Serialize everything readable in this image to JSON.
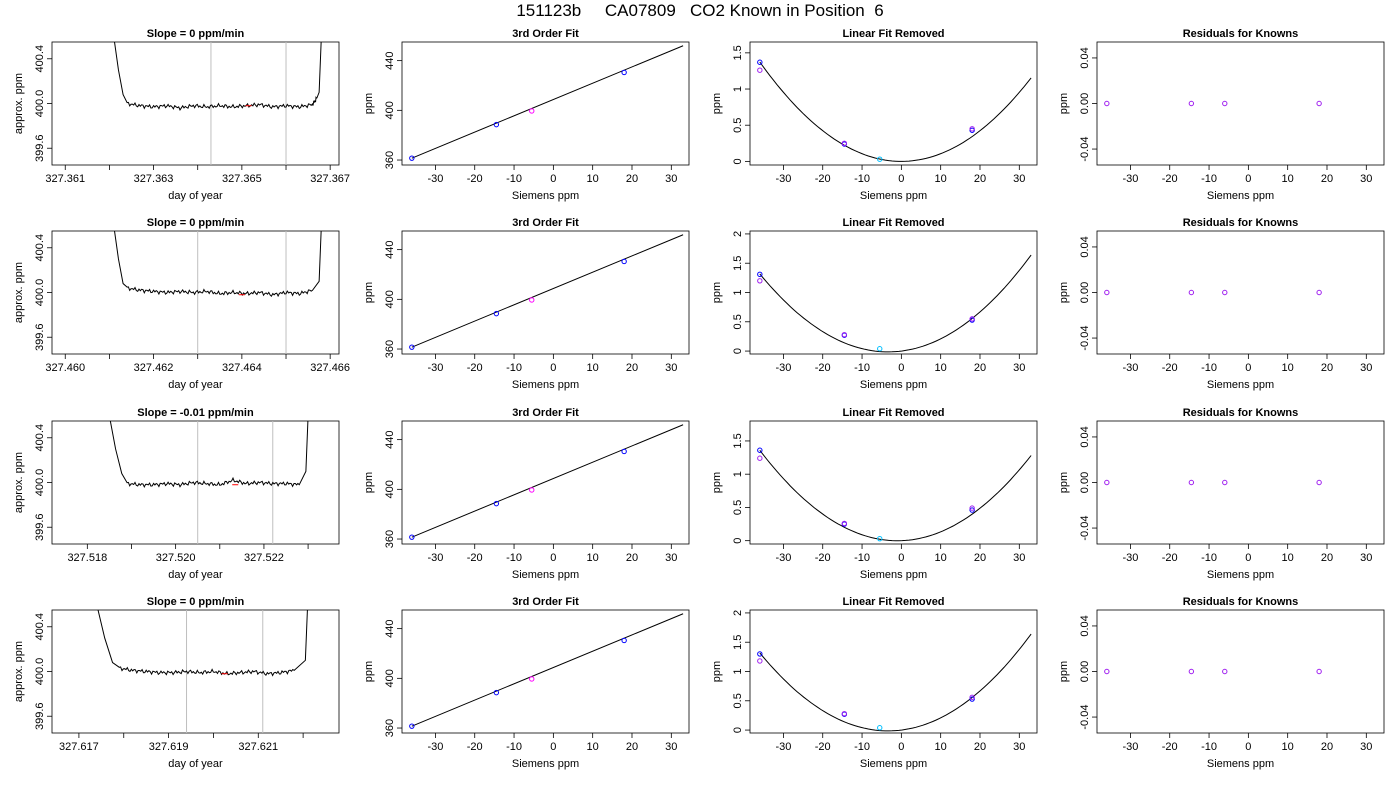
{
  "title": "151123b     CA07809   CO2 Known in Position  6",
  "colors": {
    "line": "#000000",
    "grid": "#bebebe",
    "known_fit": "#0000ff",
    "known_meas": "#a020f0",
    "sample": "#00bfff",
    "reference": "#ff00ff",
    "marker": "#ff0000"
  },
  "chart_data": [
    {
      "row": 1,
      "type": "line",
      "title": "Slope =  0  ppm/min",
      "xlabel": "day of year",
      "ylabel": "approx. ppm",
      "xlim": [
        327.3607,
        327.3672
      ],
      "ylim": [
        399.45,
        400.55
      ],
      "xticks": [
        327.361,
        327.362,
        327.363,
        327.364,
        327.365,
        327.366,
        327.367
      ],
      "xticklabels": [
        "327.361",
        "",
        "327.363",
        "",
        "327.365",
        "",
        "327.367"
      ],
      "yticks": [
        399.6,
        400.0,
        400.4
      ],
      "yticklabels": [
        "399.6",
        "400.0",
        "400.4"
      ],
      "vlines": [
        327.3643,
        327.366
      ],
      "x": [
        327.3624,
        327.3627,
        327.363,
        327.3633,
        327.3636,
        327.3639,
        327.3642,
        327.3645,
        327.3648,
        327.3651,
        327.3654,
        327.3657,
        327.366,
        327.3663,
        327.3666,
        327.3667
      ],
      "values": [
        400.0,
        399.98,
        399.97,
        399.98,
        399.96,
        399.98,
        399.97,
        399.98,
        399.97,
        399.98,
        399.99,
        399.97,
        399.98,
        399.97,
        399.99,
        400.05
      ],
      "edge_rise": [
        327.3621,
        327.3668
      ]
    },
    {
      "row": 2,
      "type": "line",
      "title": "Slope =  0  ppm/min",
      "xlabel": "day of year",
      "ylabel": "approx. ppm",
      "xlim": [
        327.4597,
        327.4662
      ],
      "ylim": [
        399.45,
        400.55
      ],
      "xticks": [
        327.46,
        327.461,
        327.462,
        327.463,
        327.464,
        327.465,
        327.466
      ],
      "xticklabels": [
        "327.460",
        "",
        "327.462",
        "",
        "327.464",
        "",
        "327.466"
      ],
      "yticks": [
        399.6,
        400.0,
        400.4
      ],
      "yticklabels": [
        "399.6",
        "400.0",
        "400.4"
      ],
      "vlines": [
        327.463,
        327.465
      ],
      "x": [
        327.4614,
        327.4617,
        327.462,
        327.4623,
        327.4626,
        327.4629,
        327.4632,
        327.4635,
        327.4638,
        327.4641,
        327.4644,
        327.4647,
        327.465,
        327.4653,
        327.4656
      ],
      "values": [
        400.04,
        400.02,
        400.01,
        400.0,
        400.01,
        400.0,
        400.01,
        399.99,
        400.0,
        399.99,
        400.0,
        399.98,
        400.0,
        399.99,
        400.02
      ],
      "edge_rise": [
        327.4611,
        327.4658
      ]
    },
    {
      "row": 3,
      "type": "line",
      "title": "Slope =  -0.01  ppm/min",
      "xlabel": "day of year",
      "ylabel": "approx. ppm",
      "xlim": [
        327.5172,
        327.5237
      ],
      "ylim": [
        399.45,
        400.55
      ],
      "xticks": [
        327.518,
        327.519,
        327.52,
        327.521,
        327.522,
        327.523
      ],
      "xticklabels": [
        "327.518",
        "",
        "327.520",
        "",
        "327.522",
        ""
      ],
      "yticks": [
        399.6,
        400.0,
        400.4
      ],
      "yticklabels": [
        "399.6",
        "400.0",
        "400.4"
      ],
      "vlines": [
        327.5205,
        327.5222
      ],
      "x": [
        327.5189,
        327.5192,
        327.5195,
        327.5198,
        327.5201,
        327.5204,
        327.5207,
        327.521,
        327.5213,
        327.5216,
        327.5219,
        327.5222,
        327.5225,
        327.5228
      ],
      "values": [
        399.99,
        399.98,
        399.98,
        399.99,
        399.98,
        400.0,
        399.99,
        399.98,
        400.02,
        399.99,
        400.0,
        399.99,
        399.99,
        399.98
      ],
      "edge_rise": [
        327.5185,
        327.523
      ]
    },
    {
      "row": 4,
      "type": "line",
      "title": "Slope =  0  ppm/min",
      "xlabel": "day of year",
      "ylabel": "approx. ppm",
      "xlim": [
        327.6164,
        327.6228
      ],
      "ylim": [
        399.45,
        400.55
      ],
      "xticks": [
        327.617,
        327.618,
        327.619,
        327.62,
        327.621,
        327.622
      ],
      "xticklabels": [
        "327.617",
        "",
        "327.619",
        "",
        "327.621",
        ""
      ],
      "yticks": [
        399.6,
        400.0,
        400.4
      ],
      "yticklabels": [
        "399.6",
        "400.0",
        "400.4"
      ],
      "vlines": [
        327.6194,
        327.6211
      ],
      "x": [
        327.6179,
        327.6182,
        327.6185,
        327.6188,
        327.6191,
        327.6194,
        327.6197,
        327.62,
        327.6203,
        327.6206,
        327.6209,
        327.6212,
        327.6215,
        327.6218
      ],
      "values": [
        400.03,
        400.01,
        400.0,
        399.99,
        399.99,
        400.0,
        399.99,
        400.0,
        399.98,
        399.99,
        400.0,
        399.98,
        399.99,
        400.01
      ],
      "edge_rise": [
        327.6174,
        327.6221
      ]
    },
    {
      "row": 1,
      "type": "scatter",
      "title": "3rd Order Fit",
      "xlabel": "Siemens ppm",
      "ylabel": "ppm",
      "xlim": [
        -38.5,
        34.5
      ],
      "ylim": [
        356,
        455
      ],
      "xticks": [
        -30,
        -20,
        -10,
        0,
        10,
        20,
        30
      ],
      "yticks": [
        360,
        400,
        440
      ],
      "fit_line": {
        "x": [
          -36,
          33
        ],
        "y": [
          361.5,
          452
        ]
      },
      "points": [
        {
          "x": -36,
          "y": 361.5,
          "group": "known"
        },
        {
          "x": -14.5,
          "y": 388.5,
          "group": "known"
        },
        {
          "x": -5.5,
          "y": 399.5,
          "group": "reference"
        },
        {
          "x": 18,
          "y": 430.5,
          "group": "known"
        }
      ]
    },
    {
      "row": 2,
      "type": "scatter",
      "title": "3rd Order Fit",
      "xlabel": "Siemens ppm",
      "ylabel": "ppm",
      "xlim": [
        -38.5,
        34.5
      ],
      "ylim": [
        356,
        455
      ],
      "xticks": [
        -30,
        -20,
        -10,
        0,
        10,
        20,
        30
      ],
      "yticks": [
        360,
        400,
        440
      ],
      "fit_line": {
        "x": [
          -36,
          33
        ],
        "y": [
          361.5,
          452
        ]
      },
      "points": [
        {
          "x": -36,
          "y": 361.5,
          "group": "known"
        },
        {
          "x": -14.5,
          "y": 388.5,
          "group": "known"
        },
        {
          "x": -5.5,
          "y": 399.5,
          "group": "reference"
        },
        {
          "x": 18,
          "y": 430.5,
          "group": "known"
        }
      ]
    },
    {
      "row": 3,
      "type": "scatter",
      "title": "3rd Order Fit",
      "xlabel": "Siemens ppm",
      "ylabel": "ppm",
      "xlim": [
        -38.5,
        34.5
      ],
      "ylim": [
        356,
        455
      ],
      "xticks": [
        -30,
        -20,
        -10,
        0,
        10,
        20,
        30
      ],
      "yticks": [
        360,
        400,
        440
      ],
      "fit_line": {
        "x": [
          -36,
          33
        ],
        "y": [
          361.5,
          452
        ]
      },
      "points": [
        {
          "x": -36,
          "y": 361.5,
          "group": "known"
        },
        {
          "x": -14.5,
          "y": 388.5,
          "group": "known"
        },
        {
          "x": -5.5,
          "y": 399.5,
          "group": "reference"
        },
        {
          "x": 18,
          "y": 430.5,
          "group": "known"
        }
      ]
    },
    {
      "row": 4,
      "type": "scatter",
      "title": "3rd Order Fit",
      "xlabel": "Siemens ppm",
      "ylabel": "ppm",
      "xlim": [
        -38.5,
        34.5
      ],
      "ylim": [
        356,
        455
      ],
      "xticks": [
        -30,
        -20,
        -10,
        0,
        10,
        20,
        30
      ],
      "yticks": [
        360,
        400,
        440
      ],
      "fit_line": {
        "x": [
          -36,
          33
        ],
        "y": [
          361.5,
          452
        ]
      },
      "points": [
        {
          "x": -36,
          "y": 361.5,
          "group": "known"
        },
        {
          "x": -14.5,
          "y": 388.5,
          "group": "known"
        },
        {
          "x": -5.5,
          "y": 399.5,
          "group": "reference"
        },
        {
          "x": 18,
          "y": 430.5,
          "group": "known"
        }
      ]
    },
    {
      "row": 1,
      "type": "scatter",
      "title": "Linear Fit Removed",
      "xlabel": "Siemens ppm",
      "ylabel": "ppm",
      "xlim": [
        -38.5,
        34.5
      ],
      "ylim": [
        -0.05,
        1.65
      ],
      "xticks": [
        -30,
        -20,
        -10,
        0,
        10,
        20,
        30
      ],
      "yticks": [
        0.0,
        0.5,
        1.0,
        1.5
      ],
      "curve": {
        "a": 0.00106,
        "b": 0,
        "c": 0,
        "xrange": [
          -36,
          33
        ]
      },
      "points": [
        {
          "x": -36,
          "y": 1.37,
          "group": "fit"
        },
        {
          "x": -36,
          "y": 1.26,
          "group": "measured"
        },
        {
          "x": -14.5,
          "y": 0.24,
          "group": "fit"
        },
        {
          "x": -14.5,
          "y": 0.25,
          "group": "measured"
        },
        {
          "x": -5.5,
          "y": 0.03,
          "group": "sample"
        },
        {
          "x": 18,
          "y": 0.43,
          "group": "fit"
        },
        {
          "x": 18,
          "y": 0.45,
          "group": "measured"
        }
      ]
    },
    {
      "row": 2,
      "type": "scatter",
      "title": "Linear Fit Removed",
      "xlabel": "Siemens ppm",
      "ylabel": "ppm",
      "xlim": [
        -38.5,
        34.5
      ],
      "ylim": [
        -0.05,
        2.05
      ],
      "xticks": [
        -30,
        -20,
        -10,
        0,
        10,
        20,
        30
      ],
      "yticks": [
        0.0,
        0.5,
        1.0,
        1.5,
        2.0
      ],
      "curve": {
        "a": 0.00125,
        "b": 0.0084,
        "c": 0,
        "xrange": [
          -36,
          33
        ]
      },
      "points": [
        {
          "x": -36,
          "y": 1.31,
          "group": "fit"
        },
        {
          "x": -36,
          "y": 1.2,
          "group": "measured"
        },
        {
          "x": -14.5,
          "y": 0.27,
          "group": "fit"
        },
        {
          "x": -14.5,
          "y": 0.28,
          "group": "measured"
        },
        {
          "x": -5.5,
          "y": 0.04,
          "group": "sample"
        },
        {
          "x": 18,
          "y": 0.53,
          "group": "fit"
        },
        {
          "x": 18,
          "y": 0.55,
          "group": "measured"
        }
      ]
    },
    {
      "row": 3,
      "type": "scatter",
      "title": "Linear Fit Removed",
      "xlabel": "Siemens ppm",
      "ylabel": "ppm",
      "xlim": [
        -38.5,
        34.5
      ],
      "ylim": [
        -0.05,
        1.8
      ],
      "xticks": [
        -30,
        -20,
        -10,
        0,
        10,
        20,
        30
      ],
      "yticks": [
        0.0,
        0.5,
        1.0,
        1.5
      ],
      "curve": {
        "a": 0.00111,
        "b": 0.0022,
        "c": 0,
        "xrange": [
          -36,
          33
        ]
      },
      "points": [
        {
          "x": -36,
          "y": 1.36,
          "group": "fit"
        },
        {
          "x": -36,
          "y": 1.24,
          "group": "measured"
        },
        {
          "x": -14.5,
          "y": 0.25,
          "group": "fit"
        },
        {
          "x": -14.5,
          "y": 0.26,
          "group": "measured"
        },
        {
          "x": -5.5,
          "y": 0.03,
          "group": "sample"
        },
        {
          "x": 18,
          "y": 0.46,
          "group": "fit"
        },
        {
          "x": 18,
          "y": 0.49,
          "group": "measured"
        }
      ]
    },
    {
      "row": 4,
      "type": "scatter",
      "title": "Linear Fit Removed",
      "xlabel": "Siemens ppm",
      "ylabel": "ppm",
      "xlim": [
        -38.5,
        34.5
      ],
      "ylim": [
        -0.05,
        2.05
      ],
      "xticks": [
        -30,
        -20,
        -10,
        0,
        10,
        20,
        30
      ],
      "yticks": [
        0.0,
        0.5,
        1.0,
        1.5,
        2.0
      ],
      "curve": {
        "a": 0.00125,
        "b": 0.0084,
        "c": 0,
        "xrange": [
          -36,
          33
        ]
      },
      "points": [
        {
          "x": -36,
          "y": 1.3,
          "group": "fit"
        },
        {
          "x": -36,
          "y": 1.18,
          "group": "measured"
        },
        {
          "x": -14.5,
          "y": 0.27,
          "group": "fit"
        },
        {
          "x": -14.5,
          "y": 0.28,
          "group": "measured"
        },
        {
          "x": -5.5,
          "y": 0.04,
          "group": "sample"
        },
        {
          "x": 18,
          "y": 0.53,
          "group": "fit"
        },
        {
          "x": 18,
          "y": 0.56,
          "group": "measured"
        }
      ]
    },
    {
      "row": 1,
      "type": "scatter",
      "title": "Residuals for Knowns",
      "xlabel": "Siemens ppm",
      "ylabel": "ppm",
      "xlim": [
        -38.5,
        34.5
      ],
      "ylim": [
        -0.054,
        0.054
      ],
      "xticks": [
        -30,
        -20,
        -10,
        0,
        10,
        20,
        30
      ],
      "yticks": [
        -0.04,
        0.0,
        0.04
      ],
      "yticklabels": [
        "-0.04",
        "0.00",
        "0.04"
      ],
      "points": [
        {
          "x": -36,
          "y": 0
        },
        {
          "x": -14.5,
          "y": 0
        },
        {
          "x": -6,
          "y": 0
        },
        {
          "x": 18,
          "y": 0
        }
      ]
    },
    {
      "row": 2,
      "type": "scatter",
      "title": "Residuals for Knowns",
      "xlabel": "Siemens ppm",
      "ylabel": "ppm",
      "xlim": [
        -38.5,
        34.5
      ],
      "ylim": [
        -0.054,
        0.054
      ],
      "xticks": [
        -30,
        -20,
        -10,
        0,
        10,
        20,
        30
      ],
      "yticks": [
        -0.04,
        0.0,
        0.04
      ],
      "yticklabels": [
        "-0.04",
        "0.00",
        "0.04"
      ],
      "points": [
        {
          "x": -36,
          "y": 0
        },
        {
          "x": -14.5,
          "y": 0
        },
        {
          "x": -6,
          "y": 0
        },
        {
          "x": 18,
          "y": 0
        }
      ]
    },
    {
      "row": 3,
      "type": "scatter",
      "title": "Residuals for Knowns",
      "xlabel": "Siemens ppm",
      "ylabel": "ppm",
      "xlim": [
        -38.5,
        34.5
      ],
      "ylim": [
        -0.054,
        0.054
      ],
      "xticks": [
        -30,
        -20,
        -10,
        0,
        10,
        20,
        30
      ],
      "yticks": [
        -0.04,
        0.0,
        0.04
      ],
      "yticklabels": [
        "-0.04",
        "0.00",
        "0.04"
      ],
      "points": [
        {
          "x": -36,
          "y": 0
        },
        {
          "x": -14.5,
          "y": 0
        },
        {
          "x": -6,
          "y": 0
        },
        {
          "x": 18,
          "y": 0
        }
      ]
    },
    {
      "row": 4,
      "type": "scatter",
      "title": "Residuals for Knowns",
      "xlabel": "Siemens ppm",
      "ylabel": "ppm",
      "xlim": [
        -38.5,
        34.5
      ],
      "ylim": [
        -0.054,
        0.054
      ],
      "xticks": [
        -30,
        -20,
        -10,
        0,
        10,
        20,
        30
      ],
      "yticks": [
        -0.04,
        0.0,
        0.04
      ],
      "yticklabels": [
        "-0.04",
        "0.00",
        "0.04"
      ],
      "points": [
        {
          "x": -36,
          "y": 0
        },
        {
          "x": -14.5,
          "y": 0
        },
        {
          "x": -6,
          "y": 0
        },
        {
          "x": 18,
          "y": 0
        }
      ]
    }
  ]
}
